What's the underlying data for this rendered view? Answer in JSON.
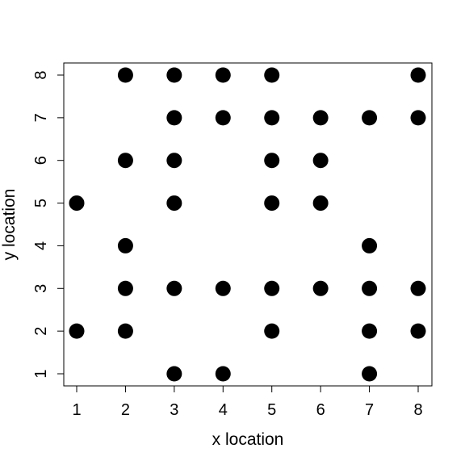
{
  "chart_data": {
    "type": "scatter",
    "title": "",
    "xlabel": "x location",
    "ylabel": "y location",
    "xlim": [
      1,
      8
    ],
    "ylim": [
      1,
      8
    ],
    "xticks": [
      1,
      2,
      3,
      4,
      5,
      6,
      7,
      8
    ],
    "yticks": [
      1,
      2,
      3,
      4,
      5,
      6,
      7,
      8
    ],
    "grid": false,
    "legend": "none",
    "point_color": "#000000",
    "points": [
      {
        "x": 2,
        "y": 8
      },
      {
        "x": 3,
        "y": 8
      },
      {
        "x": 4,
        "y": 8
      },
      {
        "x": 5,
        "y": 8
      },
      {
        "x": 8,
        "y": 8
      },
      {
        "x": 3,
        "y": 7
      },
      {
        "x": 4,
        "y": 7
      },
      {
        "x": 5,
        "y": 7
      },
      {
        "x": 6,
        "y": 7
      },
      {
        "x": 7,
        "y": 7
      },
      {
        "x": 8,
        "y": 7
      },
      {
        "x": 2,
        "y": 6
      },
      {
        "x": 3,
        "y": 6
      },
      {
        "x": 5,
        "y": 6
      },
      {
        "x": 6,
        "y": 6
      },
      {
        "x": 1,
        "y": 5
      },
      {
        "x": 3,
        "y": 5
      },
      {
        "x": 5,
        "y": 5
      },
      {
        "x": 6,
        "y": 5
      },
      {
        "x": 2,
        "y": 4
      },
      {
        "x": 7,
        "y": 4
      },
      {
        "x": 2,
        "y": 3
      },
      {
        "x": 3,
        "y": 3
      },
      {
        "x": 4,
        "y": 3
      },
      {
        "x": 5,
        "y": 3
      },
      {
        "x": 6,
        "y": 3
      },
      {
        "x": 7,
        "y": 3
      },
      {
        "x": 8,
        "y": 3
      },
      {
        "x": 1,
        "y": 2
      },
      {
        "x": 2,
        "y": 2
      },
      {
        "x": 5,
        "y": 2
      },
      {
        "x": 7,
        "y": 2
      },
      {
        "x": 8,
        "y": 2
      },
      {
        "x": 3,
        "y": 1
      },
      {
        "x": 4,
        "y": 1
      },
      {
        "x": 7,
        "y": 1
      }
    ]
  }
}
